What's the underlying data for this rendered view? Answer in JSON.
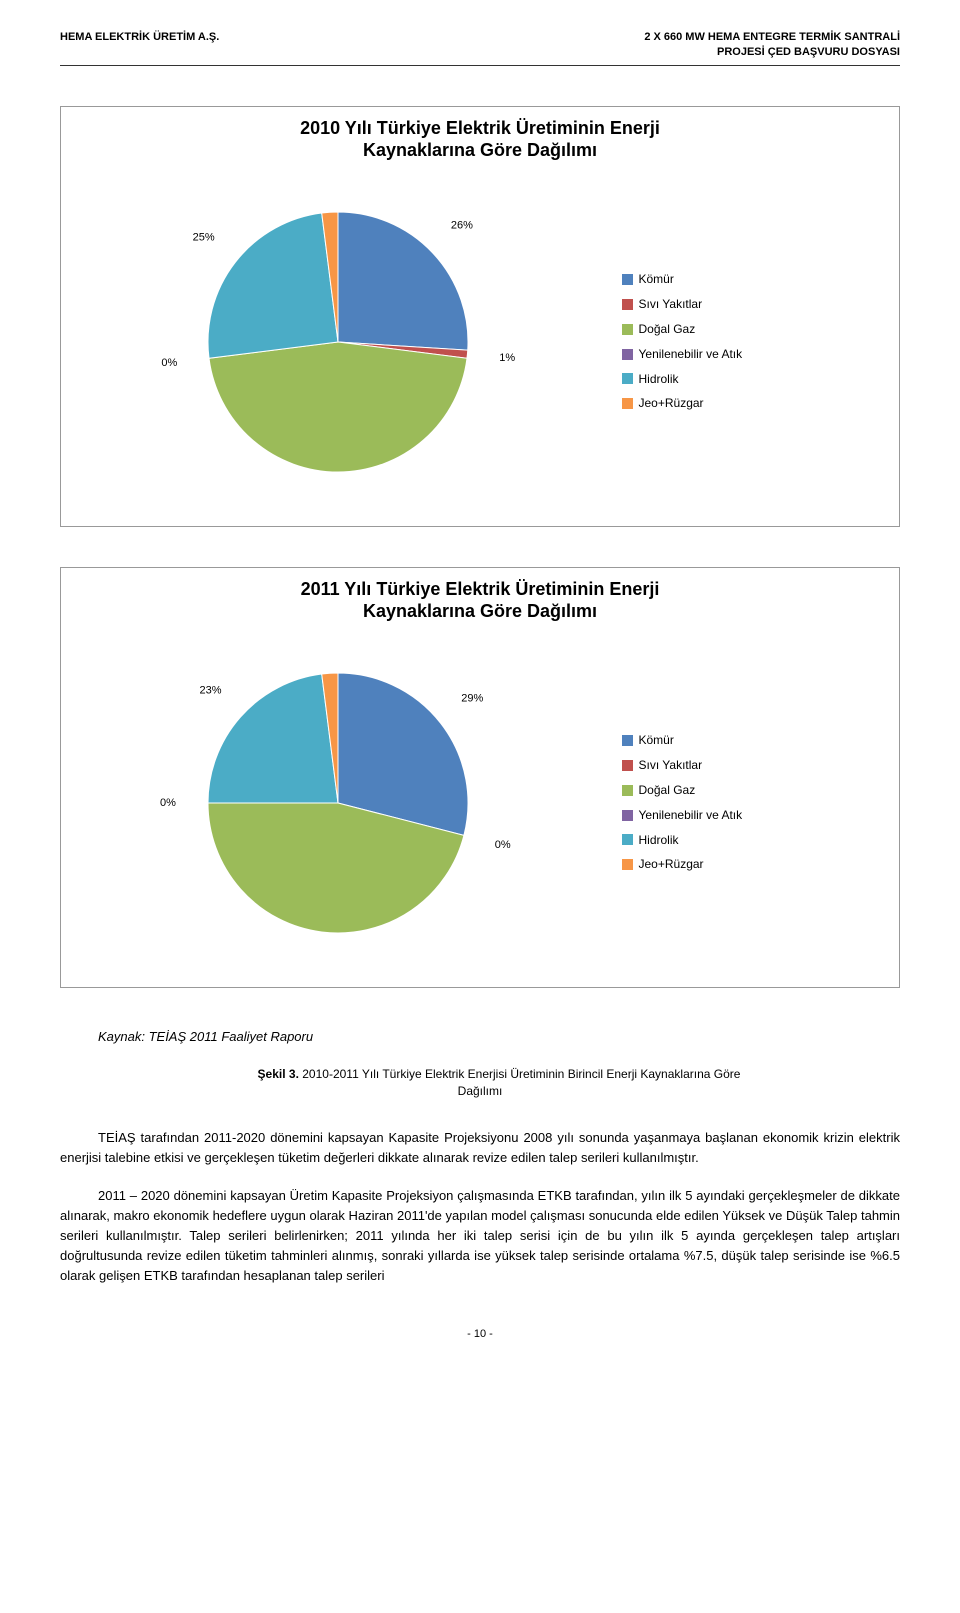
{
  "header": {
    "left": "HEMA ELEKTRİK ÜRETİM A.Ş.",
    "right_line1": "2 X 660 MW HEMA ENTEGRE TERMİK SANTRALİ",
    "right_line2": "PROJESİ ÇED BAŞVURU DOSYASI"
  },
  "chart2010": {
    "title_line1": "2010 Yılı Türkiye Elektrik Üretiminin Enerji",
    "title_line2": "Kaynaklarına Göre Dağılımı",
    "categories": [
      "Kömür",
      "Sıvı Yakıtlar",
      "Doğal Gaz",
      "Yenilenebilir ve Atık",
      "Hidrolik",
      "Jeo+Rüzgar"
    ],
    "values": [
      26,
      1,
      46,
      0,
      25,
      2
    ],
    "labels": [
      "26%",
      "1%",
      "46%",
      "0%",
      "25%",
      "2%"
    ],
    "colors": [
      "#4f81bd",
      "#c0504d",
      "#9bbb59",
      "#8064a2",
      "#4bacc6",
      "#f79646"
    ],
    "background_color": "#ffffff",
    "border_color": "#999999",
    "title_fontsize": 18,
    "legend_fontsize": 12,
    "label_fontsize": 11,
    "pie_radius": 130,
    "label_offset": 40
  },
  "chart2011": {
    "title_line1": "2011 Yılı Türkiye Elektrik Üretiminin Enerji",
    "title_line2": "Kaynaklarına Göre Dağılımı",
    "categories": [
      "Kömür",
      "Sıvı Yakıtlar",
      "Doğal Gaz",
      "Yenilenebilir ve Atık",
      "Hidrolik",
      "Jeo+Rüzgar"
    ],
    "values": [
      29,
      0,
      46,
      0,
      23,
      2
    ],
    "labels": [
      "29%",
      "0%",
      "46%",
      "0%",
      "23%",
      "2%"
    ],
    "colors": [
      "#4f81bd",
      "#c0504d",
      "#9bbb59",
      "#8064a2",
      "#4bacc6",
      "#f79646"
    ],
    "background_color": "#ffffff",
    "border_color": "#999999",
    "title_fontsize": 18,
    "legend_fontsize": 12,
    "label_fontsize": 11,
    "pie_radius": 130,
    "label_offset": 40
  },
  "source_text": "Kaynak: TEİAŞ 2011 Faaliyet Raporu",
  "figure_caption_prefix": "Şekil 3. ",
  "figure_caption": "2010-2011 Yılı Türkiye Elektrik Enerjisi Üretiminin Birincil Enerji Kaynaklarına Göre Dağılımı",
  "figure_caption_indent_label": "Şekil 3. ",
  "figure_caption_rest": "2010-2011 Yılı Türkiye Elektrik Enerjisi Üretiminin Birincil Enerji Kaynaklarına Göre",
  "figure_caption_line2": "Dağılımı",
  "paragraph1": "TEİAŞ tarafından 2011-2020 dönemini kapsayan Kapasite Projeksiyonu 2008 yılı sonunda yaşanmaya başlanan ekonomik krizin elektrik enerjisi talebine etkisi ve gerçekleşen tüketim değerleri dikkate alınarak revize edilen talep serileri kullanılmıştır.",
  "paragraph2": "2011 – 2020 dönemini kapsayan Üretim Kapasite Projeksiyon çalışmasında ETKB tarafından, yılın ilk 5 ayındaki gerçekleşmeler de dikkate alınarak, makro ekonomik hedeflere uygun olarak Haziran 2011'de yapılan model çalışması sonucunda elde edilen Yüksek ve Düşük Talep tahmin serileri kullanılmıştır. Talep serileri belirlenirken; 2011 yılında her iki talep serisi için de bu yılın ilk 5 ayında gerçekleşen talep artışları doğrultusunda revize edilen tüketim tahminleri alınmış, sonraki yıllarda ise yüksek talep serisinde ortalama %7.5, düşük talep serisinde ise %6.5 olarak gelişen ETKB tarafından hesaplanan talep serileri",
  "page_num": "- 10 -"
}
